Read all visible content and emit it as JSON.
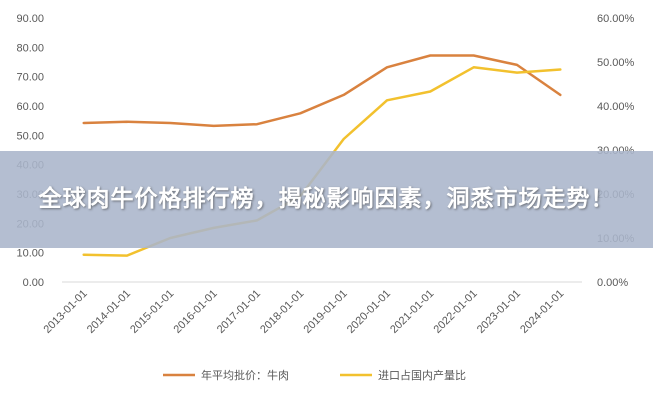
{
  "chart_data": {
    "type": "line",
    "categories": [
      "2013-01-01",
      "2014-01-01",
      "2015-01-01",
      "2016-01-01",
      "2017-01-01",
      "2018-01-01",
      "2019-01-01",
      "2020-01-01",
      "2021-01-01",
      "2022-01-01",
      "2023-01-01",
      "2024-01-01"
    ],
    "series": [
      {
        "name": "年平均批价：牛肉",
        "axis": "left",
        "color": "#D9823F",
        "values": [
          54.2,
          54.6,
          54.2,
          53.2,
          53.8,
          57.5,
          63.8,
          73.2,
          77.2,
          77.2,
          74.0,
          63.8
        ]
      },
      {
        "name": "进口占国内产量比",
        "axis": "right",
        "color": "#F2C12E",
        "values": [
          6.2,
          6.0,
          10.0,
          12.3,
          14.0,
          19.5,
          32.5,
          41.3,
          43.3,
          48.8,
          47.6,
          48.3
        ]
      }
    ],
    "y_left": {
      "min": 0,
      "max": 90,
      "step": 10,
      "tick_labels": [
        "0.00",
        "10.00",
        "20.00",
        "30.00",
        "40.00",
        "50.00",
        "60.00",
        "70.00",
        "80.00",
        "90.00"
      ]
    },
    "y_right": {
      "min": 0,
      "max": 60,
      "step": 10,
      "tick_labels": [
        "0.00%",
        "10.00%",
        "20.00%",
        "30.00%",
        "40.00%",
        "50.00%",
        "60.00%"
      ]
    },
    "legend_position": "bottom",
    "grid": false,
    "axis_color": "#D9D9D9"
  },
  "banner": {
    "text": "全球肉牛价格排行榜，揭秘影响因素，洞悉市场走势！"
  }
}
